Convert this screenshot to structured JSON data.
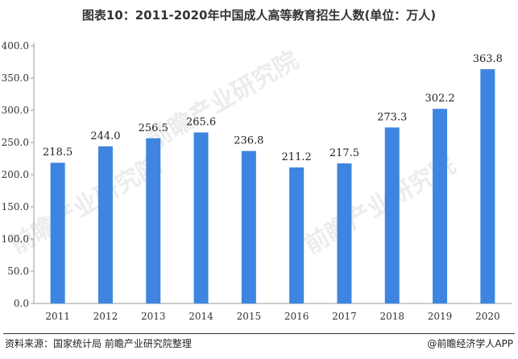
{
  "title": "图表10：2011-2020年中国成人高等教育招生人数(单位：万人)",
  "source": "资料来源：国家统计局 前瞻产业研究院整理",
  "brand": "@前瞻经济学人APP",
  "watermark": "前瞻产业研究院",
  "colors": {
    "bar": "#3d85e0",
    "axis": "#999999"
  },
  "chart_data": {
    "type": "bar",
    "title": "图表10：2011-2020年中国成人高等教育招生人数(单位：万人)",
    "categories": [
      "2011",
      "2012",
      "2013",
      "2014",
      "2015",
      "2016",
      "2017",
      "2018",
      "2019",
      "2020"
    ],
    "values": [
      218.5,
      244.0,
      256.5,
      265.6,
      236.8,
      211.2,
      217.5,
      273.3,
      302.2,
      363.8
    ],
    "value_labels": [
      "218.5",
      "244.0",
      "256.5",
      "265.6",
      "236.8",
      "211.2",
      "217.5",
      "273.3",
      "302.2",
      "363.8"
    ],
    "ylim": [
      0,
      400
    ],
    "yticks": [
      "0.0",
      "50.0",
      "100.0",
      "150.0",
      "200.0",
      "250.0",
      "300.0",
      "350.0",
      "400.0"
    ],
    "xlabel": "",
    "ylabel": "",
    "grid": false,
    "legend": "none"
  }
}
